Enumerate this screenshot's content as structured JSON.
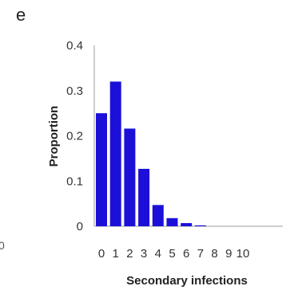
{
  "panel_label": "e",
  "edge_fragment": "0",
  "colors": {
    "bar": "#1c10d8",
    "axis": "#bdbdbd"
  },
  "chart_data": {
    "type": "bar",
    "categories": [
      "0",
      "1",
      "2",
      "3",
      "4",
      "5",
      "6",
      "7",
      "8",
      "9",
      "10"
    ],
    "values": [
      0.25,
      0.32,
      0.216,
      0.127,
      0.047,
      0.018,
      0.007,
      0.002,
      0.0,
      0.0,
      0.0
    ],
    "title": "",
    "xlabel": "Secondary infections",
    "ylabel": "Proportion",
    "ylim": [
      0,
      0.4
    ],
    "yticks": [
      "0",
      "0.1",
      "0.2",
      "0.3",
      "0.4"
    ],
    "grid": false
  }
}
